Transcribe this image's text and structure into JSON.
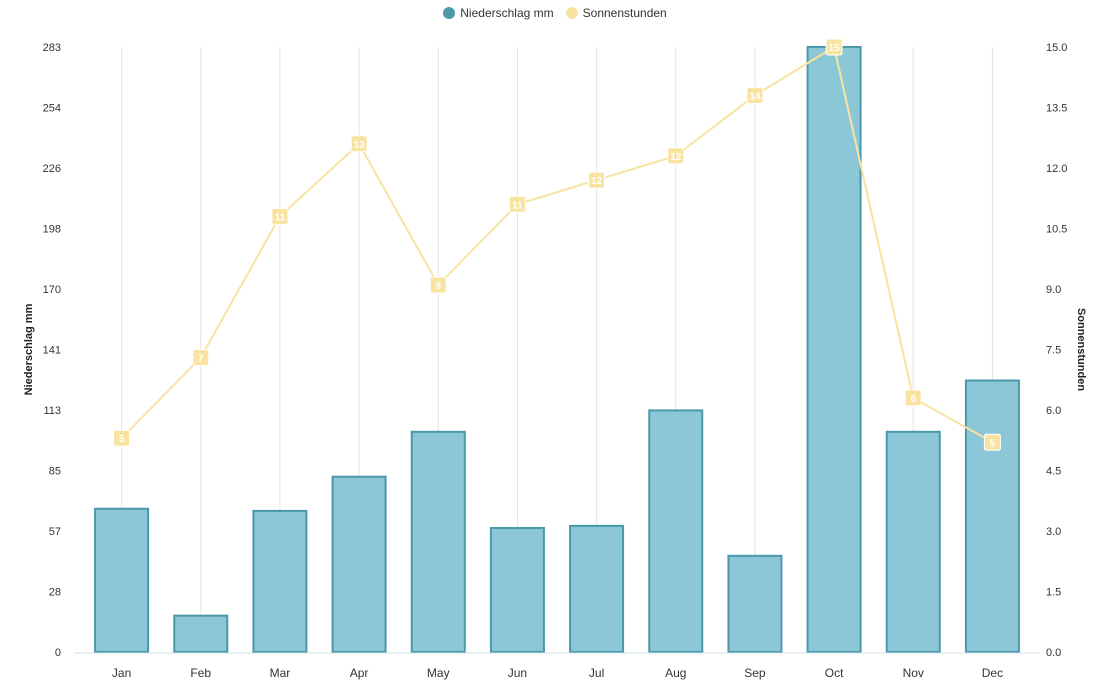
{
  "legend": {
    "series1": "Niederschlag mm",
    "series2": "Sonnenstunden"
  },
  "colors": {
    "bar_fill": "#8cc7d7",
    "bar_stroke": "#4a98ab",
    "legend_bar": "#4f9aaa",
    "line": "#f8e3a1",
    "label_bg": "#f8e3a1",
    "grid": "#e4e4e4",
    "baseline": "#cfe1e6"
  },
  "chart_data": {
    "type": "bar+line",
    "categories": [
      "Jan",
      "Feb",
      "Mar",
      "Apr",
      "May",
      "Jun",
      "Jul",
      "Aug",
      "Sep",
      "Oct",
      "Nov",
      "Dec"
    ],
    "series": [
      {
        "name": "Niederschlag mm",
        "type": "bar",
        "axis": "left",
        "values": [
          67,
          17,
          66,
          82,
          103,
          58,
          59,
          113,
          45,
          283,
          103,
          127
        ]
      },
      {
        "name": "Sonnenstunden",
        "type": "line",
        "axis": "right",
        "values": [
          5.3,
          7.3,
          10.8,
          12.6,
          9.1,
          11.1,
          11.7,
          12.3,
          13.8,
          15.0,
          6.3,
          5.2
        ],
        "data_labels": [
          "5",
          "7",
          "11",
          "13",
          "9",
          "11",
          "12",
          "12",
          "14",
          "15",
          "6",
          "5"
        ]
      }
    ],
    "y_left": {
      "label": "Niederschlag mm",
      "range": [
        0,
        283
      ],
      "ticks": [
        "0",
        "28",
        "57",
        "85",
        "113",
        "141",
        "170",
        "198",
        "226",
        "254",
        "283"
      ]
    },
    "y_right": {
      "label": "Sonnenstunden",
      "range": [
        0,
        15
      ],
      "ticks": [
        "0.0",
        "1.5",
        "3.0",
        "4.5",
        "6.0",
        "7.5",
        "9.0",
        "10.5",
        "12.0",
        "13.5",
        "15.0"
      ]
    },
    "grid": "vertical",
    "legend_position": "top-center"
  }
}
